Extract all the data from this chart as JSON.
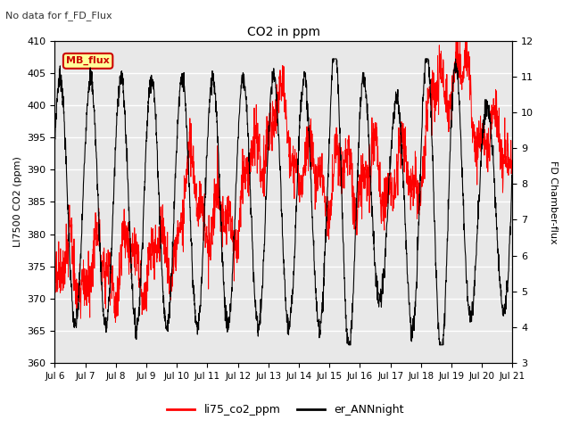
{
  "title": "CO2 in ppm",
  "subtitle": "No data for f_FD_Flux",
  "ylabel_left": "LI7500 CO2 (ppm)",
  "ylabel_right": "FD Chamber-flux",
  "ylim_left": [
    360,
    410
  ],
  "ylim_right": [
    3.0,
    12.0
  ],
  "yticks_left": [
    360,
    365,
    370,
    375,
    380,
    385,
    390,
    395,
    400,
    405,
    410
  ],
  "yticks_right": [
    3.0,
    4.0,
    5.0,
    6.0,
    7.0,
    8.0,
    9.0,
    10.0,
    11.0,
    12.0
  ],
  "xtick_labels": [
    "Jul 6",
    "Jul 7",
    "Jul 8",
    "Jul 9",
    "Jul 10",
    "Jul 11",
    "Jul 12",
    "Jul 13",
    "Jul 14",
    "Jul 15",
    "Jul 16",
    "Jul 17",
    "Jul 18",
    "Jul 19",
    "Jul 20",
    "Jul 21"
  ],
  "line1_color": "#ff0000",
  "line2_color": "#000000",
  "line1_label": "li75_co2_ppm",
  "line2_label": "er_ANNnight",
  "mb_flux_box_color": "#ffff99",
  "mb_flux_border_color": "#cc0000",
  "mb_flux_text_color": "#cc0000",
  "plot_bg_color": "#ffffff",
  "axes_bg_color": "#e8e8e8",
  "grid_color": "#ffffff",
  "n_points": 2000
}
